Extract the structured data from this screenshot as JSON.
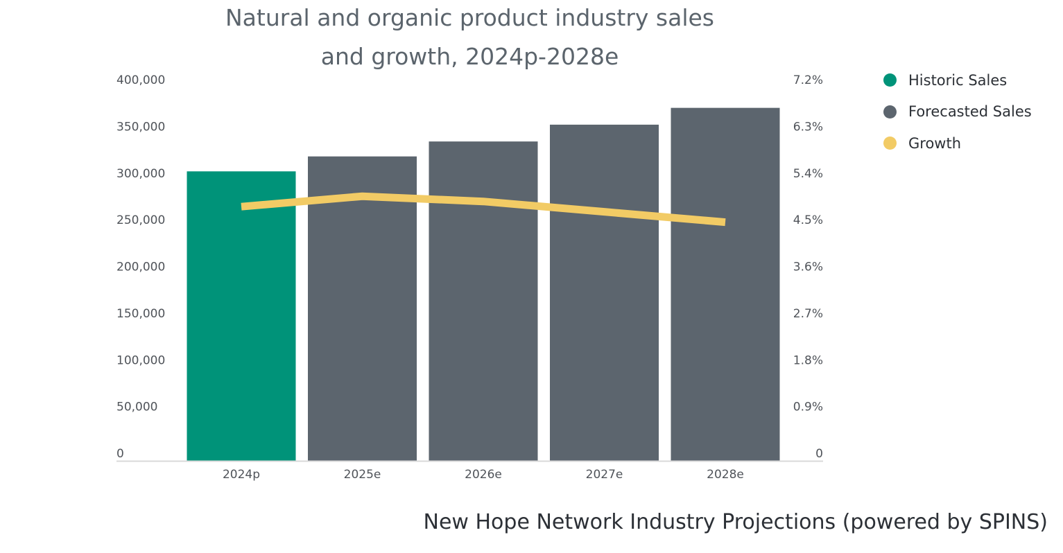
{
  "chart_data": {
    "type": "bar",
    "title_lines": [
      "Natural and organic product industry sales",
      "and growth, 2024p-2028e"
    ],
    "categories": [
      "2024p",
      "2025e",
      "2026e",
      "2027e",
      "2028e"
    ],
    "series": [
      {
        "name": "Historic Sales",
        "type": "bar",
        "axis": "left",
        "color": "#009379",
        "values": [
          310000,
          null,
          null,
          null,
          null
        ]
      },
      {
        "name": "Forecasted Sales",
        "type": "bar",
        "axis": "left",
        "color": "#5c656e",
        "values": [
          null,
          326000,
          342000,
          360000,
          378000
        ]
      },
      {
        "name": "Growth",
        "type": "line",
        "axis": "right",
        "color": "#f2cb65",
        "values": [
          4.9,
          5.1,
          5.0,
          4.8,
          4.6
        ]
      }
    ],
    "left_axis": {
      "ylim": [
        0,
        400000
      ],
      "ticks": [
        0,
        50000,
        100000,
        150000,
        200000,
        250000,
        300000,
        350000,
        400000
      ],
      "tick_labels": [
        "0",
        "50,000",
        "100,000",
        "150,000",
        "200,000",
        "250,000",
        "300,000",
        "350,000",
        "400,000"
      ]
    },
    "right_axis": {
      "ylim": [
        0,
        7.2
      ],
      "ticks": [
        0,
        0.9,
        1.8,
        2.7,
        3.6,
        4.5,
        5.4,
        6.3,
        7.2
      ],
      "tick_labels": [
        "0",
        "0.9%",
        "1.8%",
        "2.7%",
        "3.6%",
        "4.5%",
        "5.4%",
        "6.3%",
        "7.2%"
      ]
    },
    "grid": false,
    "legend": {
      "position": "right",
      "items": [
        {
          "label": "Historic Sales",
          "color": "#009379"
        },
        {
          "label": "Forecasted Sales",
          "color": "#5c656e"
        },
        {
          "label": "Growth",
          "color": "#f2cb65"
        }
      ]
    }
  },
  "source": "New Hope Network Industry Projections (powered by SPINS)"
}
